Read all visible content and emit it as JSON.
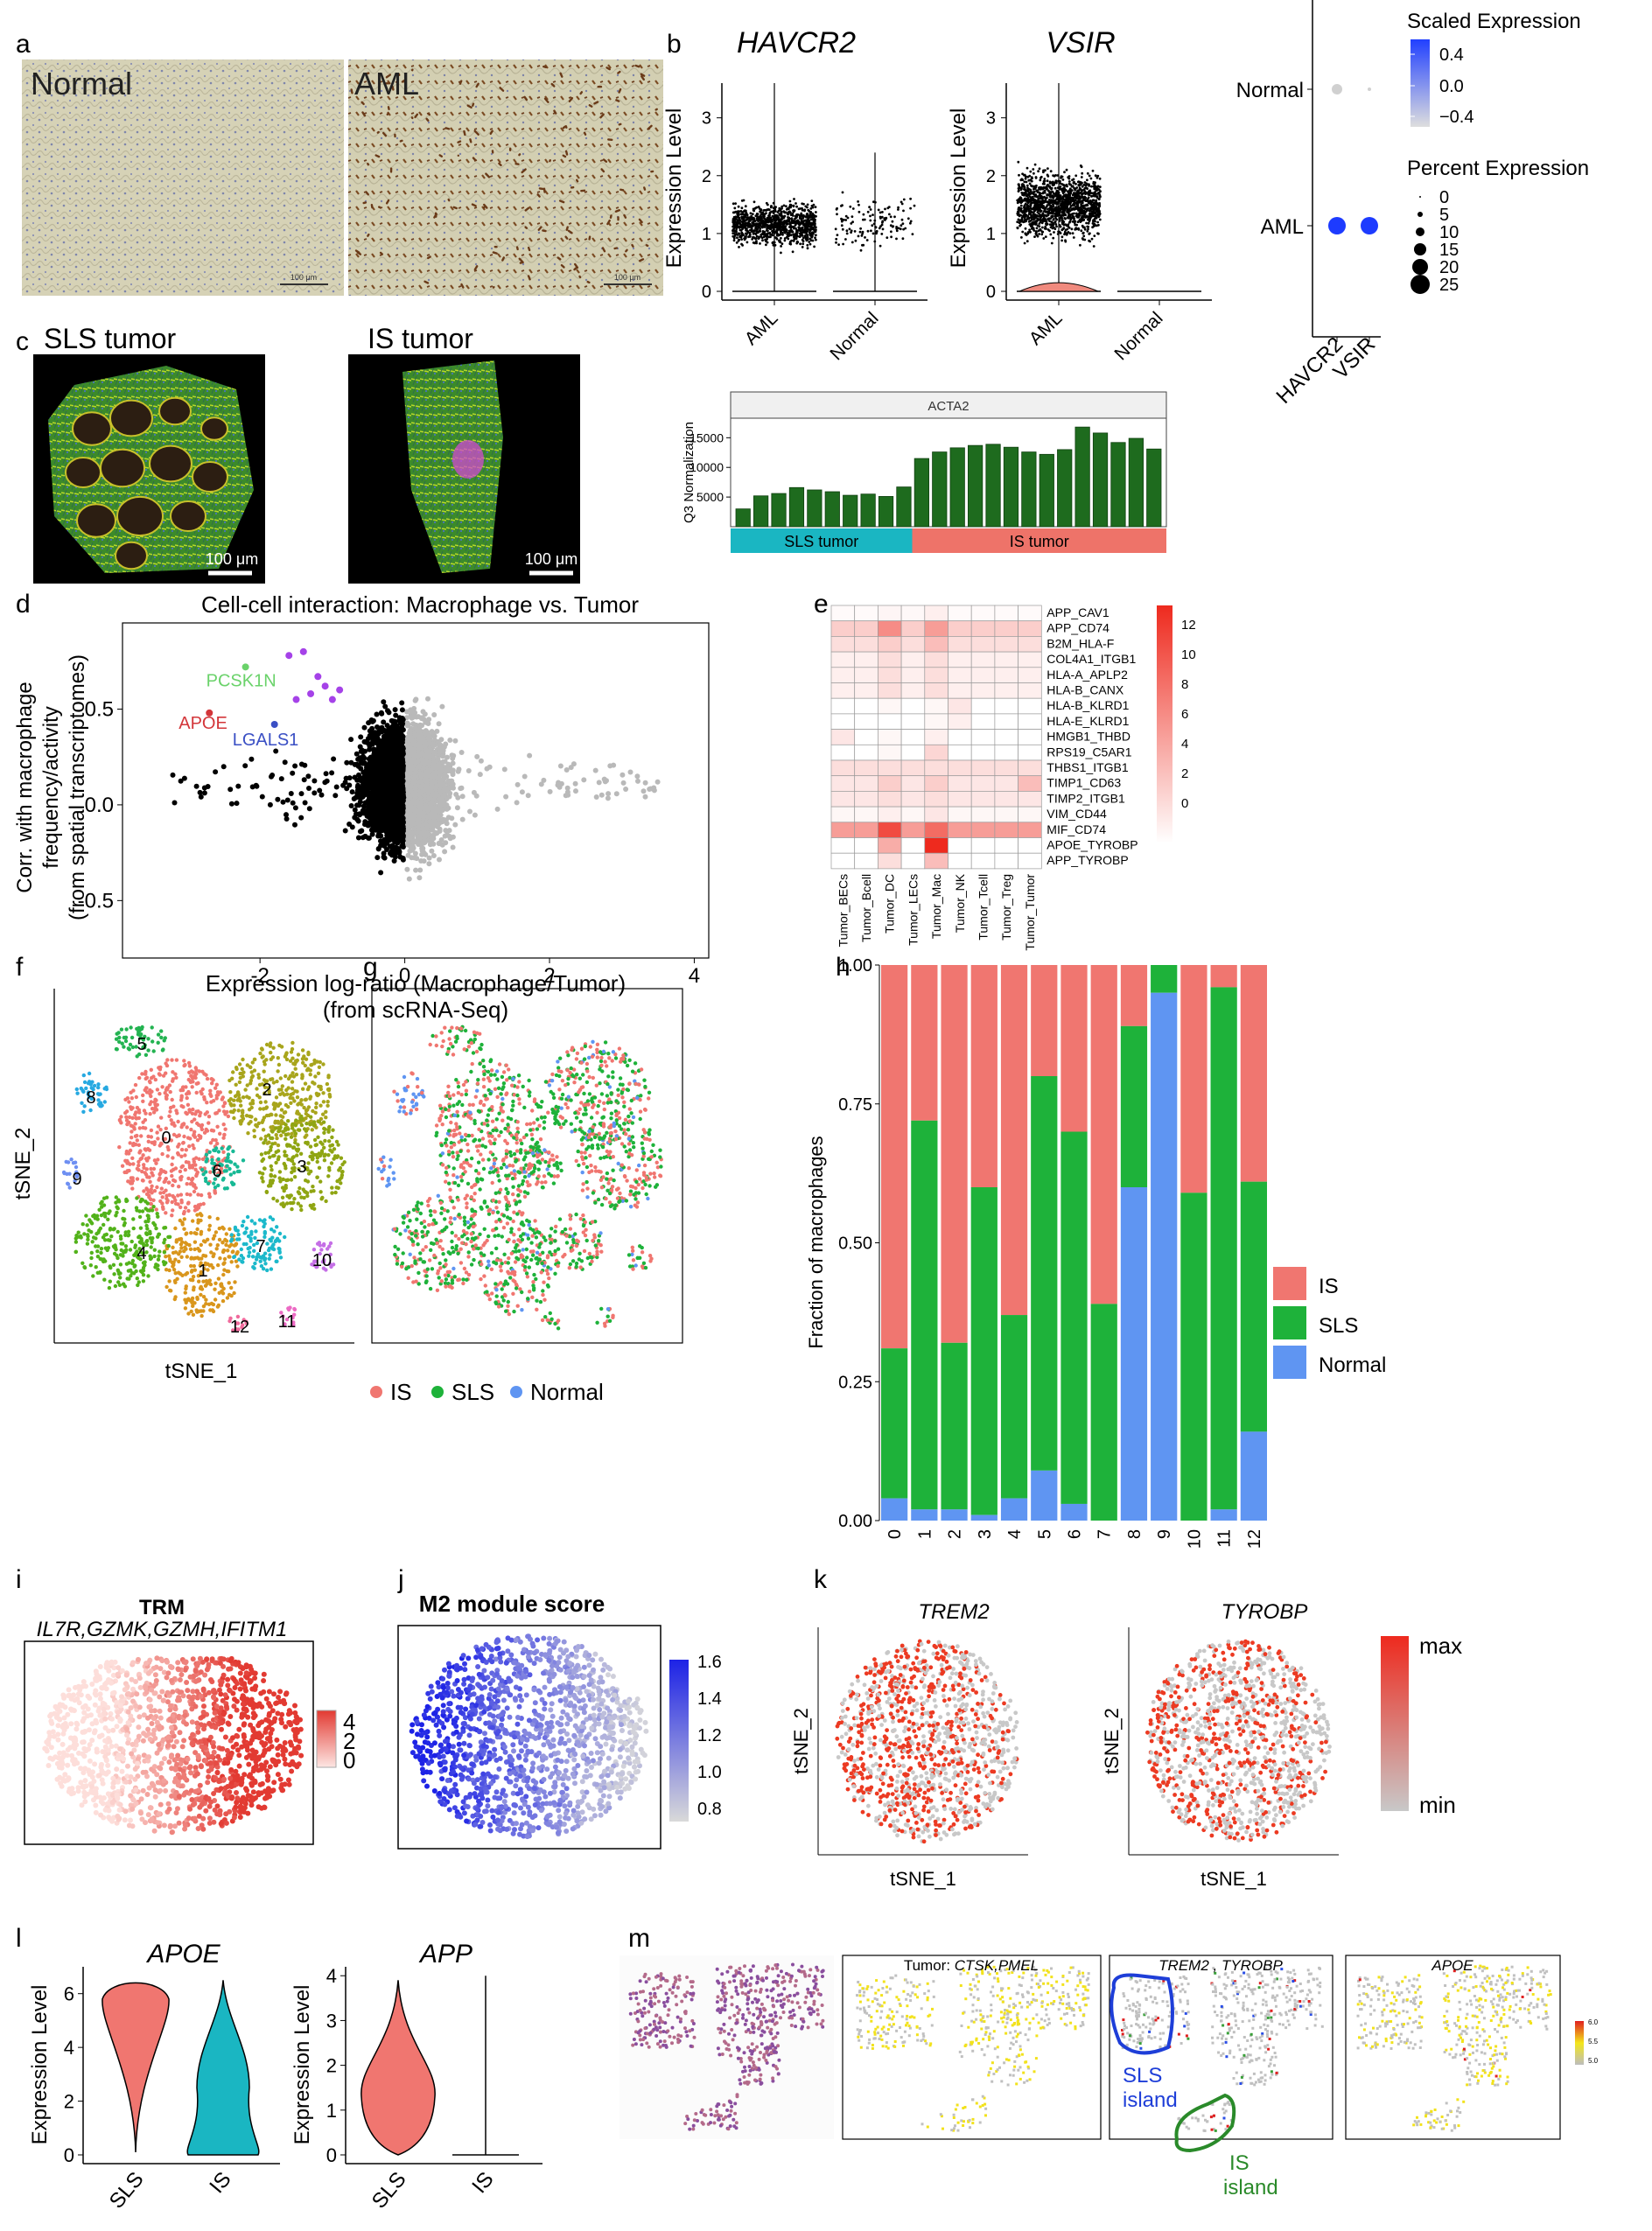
{
  "panel_letters": [
    "a",
    "b",
    "c",
    "d",
    "e",
    "f",
    "g",
    "h",
    "i",
    "j",
    "k",
    "l",
    "m"
  ],
  "a": {
    "left_label": "Normal",
    "right_label": "AML",
    "scale_text": "100 μm"
  },
  "b": {
    "violins": [
      {
        "gene": "HAVCR2",
        "ylabel": "Expression Level",
        "yticks": [
          "0",
          "1",
          "2",
          "3"
        ],
        "groups": [
          "AML",
          "Normal"
        ]
      },
      {
        "gene": "VSIR",
        "ylabel": "Expression Level",
        "yticks": [
          "0",
          "1",
          "2",
          "3"
        ],
        "groups": [
          "AML",
          "Normal"
        ]
      }
    ],
    "dotplot": {
      "rows": [
        "Normal",
        "AML"
      ],
      "cols": [
        "HAVCR2",
        "VSIR"
      ],
      "legend_scaled_title": "Scaled Expression",
      "legend_scaled_ticks": [
        "0.4",
        "0.0",
        "−0.4"
      ],
      "legend_pct_title": "Percent Expression",
      "legend_pct_values": [
        "0",
        "5",
        "10",
        "15",
        "20",
        "25"
      ],
      "colors": {
        "high": "#1d3bff",
        "low": "#d0d0d0"
      }
    }
  },
  "c": {
    "left_title": "SLS tumor",
    "right_title": "IS tumor",
    "scale": "100 μm",
    "bar": {
      "title": "ACTA2",
      "ylabel": "Q3 Normalization",
      "yticks": [
        "5000",
        "10000",
        "15000"
      ],
      "values": [
        3000,
        5200,
        5600,
        6600,
        6200,
        5900,
        5300,
        5500,
        5100,
        6700,
        11500,
        12600,
        13300,
        13700,
        13900,
        13400,
        12600,
        12200,
        13000,
        16800,
        15800,
        14200,
        14900,
        13100
      ],
      "groups": [
        {
          "label": "SLS tumor",
          "count": 10,
          "color": "#1ab6c2"
        },
        {
          "label": "IS tumor",
          "count": 14,
          "color": "#ee7369"
        }
      ],
      "bar_color": "#1e6b1e"
    }
  },
  "d": {
    "title": "Cell-cell interaction: Macrophage vs. Tumor",
    "ylabel_lines": [
      "Corr. with macrophage",
      "frequency/activity",
      "(from spatial transcriptomes)"
    ],
    "xlabel_lines": [
      "Expression log-ratio (Macrophage/Tumor)",
      "(from scRNA-Seq)"
    ],
    "xticks": [
      "-2",
      "0",
      "2",
      "4"
    ],
    "yticks": [
      "0.5",
      "0.0",
      "-0.5"
    ],
    "highlight": [
      {
        "label": "PCSK1N",
        "x": -2.2,
        "y": 0.72,
        "color": "#6ad26a"
      },
      {
        "label": "APOE",
        "x": -2.7,
        "y": 0.48,
        "color": "#d3363a"
      },
      {
        "label": "LGALS1",
        "x": -1.8,
        "y": 0.42,
        "color": "#3a4fc4"
      }
    ]
  },
  "e": {
    "rows": [
      "APP_CAV1",
      "APP_CD74",
      "B2M_HLA-F",
      "COL4A1_ITGB1",
      "HLA-A_APLP2",
      "HLA-B_CANX",
      "HLA-B_KLRD1",
      "HLA-E_KLRD1",
      "HMGB1_THBD",
      "RPS19_C5AR1",
      "THBS1_ITGB1",
      "TIMP1_CD63",
      "TIMP2_ITGB1",
      "VIM_CD44",
      "MIF_CD74",
      "APOE_TYROBP",
      "APP_TYROBP"
    ],
    "cols": [
      "Tumor_BECs",
      "Tumor_Bcell",
      "Tumor_DC",
      "Tumor_LECs",
      "Tumor_Mac",
      "Tumor_NK",
      "Tumor_Tcell",
      "Tumor_Treg",
      "Tumor_Tumor"
    ],
    "values": [
      [
        0.3,
        0.3,
        0.6,
        0.4,
        1.0,
        0.3,
        0.3,
        0.3,
        0.3
      ],
      [
        3,
        3,
        7,
        3,
        6,
        3,
        3,
        3,
        3
      ],
      [
        2,
        2,
        3,
        2,
        4,
        2,
        2,
        2,
        2
      ],
      [
        1,
        1,
        2,
        1,
        2,
        1,
        1,
        1,
        1
      ],
      [
        1,
        1,
        2,
        1,
        2,
        1,
        1,
        1,
        1
      ],
      [
        1,
        1,
        2,
        1,
        2,
        1,
        1,
        1,
        1
      ],
      [
        0,
        0,
        0.5,
        0,
        0.5,
        1.5,
        0,
        0,
        0
      ],
      [
        0,
        0,
        0,
        0,
        0.5,
        1,
        0,
        0,
        0
      ],
      [
        1.5,
        0,
        0.5,
        0,
        1,
        0,
        0,
        0,
        0
      ],
      [
        0,
        0,
        0.5,
        0,
        2.5,
        0,
        0,
        0,
        0
      ],
      [
        2,
        2,
        2,
        2,
        2,
        2,
        2,
        2,
        2
      ],
      [
        1.5,
        1.5,
        3,
        1.5,
        3,
        1.5,
        1.5,
        1.5,
        4
      ],
      [
        1.5,
        1.5,
        2,
        1.5,
        2,
        1.5,
        1.5,
        1.5,
        1.5
      ],
      [
        0.5,
        0.5,
        1,
        0.5,
        1.5,
        0.5,
        0.5,
        0.5,
        0.5
      ],
      [
        6,
        6,
        11,
        6,
        9,
        6,
        6,
        6,
        6
      ],
      [
        0,
        0,
        5,
        0,
        13,
        0,
        0,
        0,
        0
      ],
      [
        0,
        0,
        2,
        0,
        4,
        0,
        0,
        0,
        0
      ]
    ],
    "legend_ticks": [
      "12",
      "10",
      "8",
      "6",
      "4",
      "2",
      "0"
    ],
    "max": 13
  },
  "f": {
    "xlabel": "tSNE_1",
    "ylabel": "tSNE_2",
    "clusters": [
      "0",
      "1",
      "2",
      "3",
      "4",
      "5",
      "6",
      "7",
      "8",
      "9",
      "10",
      "11",
      "12"
    ]
  },
  "g": {
    "legend": [
      {
        "label": "IS",
        "color": "#f07670"
      },
      {
        "label": "SLS",
        "color": "#1eb23a"
      },
      {
        "label": "Normal",
        "color": "#5f95f2"
      }
    ]
  },
  "h": {
    "ylabel": "Fraction of macrophages",
    "yticks": [
      "0.00",
      "0.25",
      "0.50",
      "0.75",
      "1.00"
    ],
    "categories": [
      "0",
      "1",
      "2",
      "3",
      "4",
      "5",
      "6",
      "7",
      "8",
      "9",
      "10",
      "11",
      "12"
    ],
    "normal": [
      0.04,
      0.02,
      0.02,
      0.01,
      0.04,
      0.09,
      0.03,
      0.0,
      0.6,
      0.95,
      0.0,
      0.02,
      0.16
    ],
    "sls": [
      0.27,
      0.7,
      0.3,
      0.59,
      0.33,
      0.71,
      0.67,
      0.39,
      0.29,
      0.05,
      0.59,
      0.94,
      0.45
    ],
    "legend": [
      "IS",
      "SLS",
      "Normal"
    ],
    "colors": {
      "IS": "#f07670",
      "SLS": "#1eb23a",
      "Normal": "#5f95f2"
    }
  },
  "i": {
    "title": "TRM",
    "subtitle": "IL7R,GZMK,GZMH,IFITM1",
    "ticks": [
      "4",
      "2",
      "0"
    ]
  },
  "j": {
    "title": "M2 module score",
    "ticks": [
      "1.6",
      "1.4",
      "1.2",
      "1.0",
      "0.8"
    ]
  },
  "k": {
    "genes": [
      "TREM2",
      "TYROBP"
    ],
    "xlabel": "tSNE_1",
    "ylabel": "tSNE_2",
    "legend_max": "max",
    "legend_min": "min"
  },
  "l": {
    "violins": [
      {
        "gene": "APOE",
        "ylabel": "Expression Level",
        "yticks": [
          "0",
          "2",
          "4",
          "6"
        ],
        "groups": [
          "SLS",
          "IS"
        ]
      },
      {
        "gene": "APP",
        "ylabel": "Expression Level",
        "yticks": [
          "0",
          "1",
          "2",
          "3",
          "4"
        ],
        "groups": [
          "SLS",
          "IS"
        ]
      }
    ]
  },
  "m": {
    "panel2_title_prefix": "Tumor: ",
    "panel2_title_genes": "CTSK,PMEL",
    "panel3_title": "TREM2 , TYROBP",
    "panel4_title": "APOE",
    "sls_label": [
      "SLS",
      "island"
    ],
    "is_label": [
      "IS",
      "island"
    ],
    "legend_ticks": [
      "6.0",
      "5.5",
      "5.0"
    ]
  }
}
